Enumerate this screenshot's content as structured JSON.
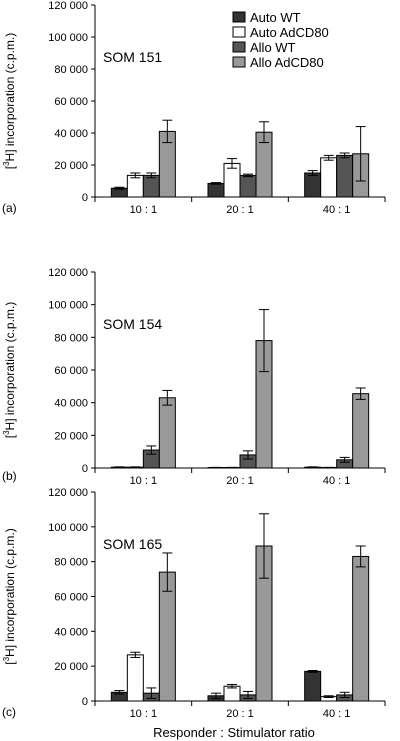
{
  "figure": {
    "shared_xlabel": "Responder : Stimulator ratio",
    "ylabel_prefix": "[",
    "ylabel_sup": "3",
    "ylabel_suffix": "H] incorporation (c.p.m.)"
  },
  "legend": {
    "entries": [
      {
        "name": "Auto WT",
        "color": "#333333"
      },
      {
        "name": "Auto AdCD80",
        "color": "#ffffff"
      },
      {
        "name": "Allo WT",
        "color": "#555555"
      },
      {
        "name": "Allo AdCD80",
        "color": "#999999"
      }
    ]
  },
  "chart_data": [
    {
      "type": "bar",
      "panel_label": "(a)",
      "title": "SOM 151",
      "categories": [
        "10 : 1",
        "20 : 1",
        "40 : 1"
      ],
      "ylim": [
        0,
        120000
      ],
      "yticks": [
        0,
        20000,
        40000,
        60000,
        80000,
        100000,
        120000
      ],
      "ytick_labels": [
        "0",
        "20 000",
        "40 000",
        "60 000",
        "80 000",
        "100 000",
        "120 000"
      ],
      "series": [
        {
          "name": "Auto WT",
          "color": "#333333",
          "values": [
            5500,
            8500,
            15000
          ],
          "errors": [
            600,
            500,
            1500
          ]
        },
        {
          "name": "Auto AdCD80",
          "color": "#ffffff",
          "values": [
            13500,
            21000,
            24500
          ],
          "errors": [
            1500,
            3000,
            1500
          ]
        },
        {
          "name": "Allo WT",
          "color": "#555555",
          "values": [
            13500,
            13500,
            26000
          ],
          "errors": [
            1500,
            800,
            1500
          ]
        },
        {
          "name": "Allo AdCD80",
          "color": "#999999",
          "values": [
            41000,
            40500,
            27000
          ],
          "errors": [
            7000,
            6500,
            17000
          ]
        }
      ]
    },
    {
      "type": "bar",
      "panel_label": "(b)",
      "title": "SOM 154",
      "categories": [
        "10 : 1",
        "20 : 1",
        "40 : 1"
      ],
      "ylim": [
        0,
        120000
      ],
      "yticks": [
        0,
        20000,
        40000,
        60000,
        80000,
        100000,
        120000
      ],
      "ytick_labels": [
        "0",
        "20 000",
        "40 000",
        "60 000",
        "80 000",
        "100 000",
        "120 000"
      ],
      "series": [
        {
          "name": "Auto WT",
          "color": "#333333",
          "values": [
            500,
            300,
            500
          ],
          "errors": [
            200,
            100,
            200
          ]
        },
        {
          "name": "Auto AdCD80",
          "color": "#ffffff",
          "values": [
            500,
            300,
            300
          ],
          "errors": [
            200,
            100,
            100
          ]
        },
        {
          "name": "Allo WT",
          "color": "#555555",
          "values": [
            11000,
            8000,
            5000
          ],
          "errors": [
            2500,
            2500,
            1500
          ]
        },
        {
          "name": "Allo AdCD80",
          "color": "#999999",
          "values": [
            43000,
            78000,
            45500
          ],
          "errors": [
            4500,
            19000,
            3500
          ]
        }
      ]
    },
    {
      "type": "bar",
      "panel_label": "(c)",
      "title": "SOM 165",
      "categories": [
        "10 : 1",
        "20 : 1",
        "40 : 1"
      ],
      "ylim": [
        0,
        120000
      ],
      "yticks": [
        0,
        20000,
        40000,
        60000,
        80000,
        100000,
        120000
      ],
      "ytick_labels": [
        "0",
        "20 000",
        "40 000",
        "60 000",
        "80 000",
        "100 000",
        "120 000"
      ],
      "series": [
        {
          "name": "Auto WT",
          "color": "#333333",
          "values": [
            5000,
            3000,
            17000
          ],
          "errors": [
            1000,
            1500,
            500
          ]
        },
        {
          "name": "Auto AdCD80",
          "color": "#ffffff",
          "values": [
            26500,
            8500,
            2500
          ],
          "errors": [
            1500,
            1000,
            500
          ]
        },
        {
          "name": "Allo WT",
          "color": "#555555",
          "values": [
            4500,
            3500,
            3500
          ],
          "errors": [
            3000,
            2000,
            1500
          ]
        },
        {
          "name": "Allo AdCD80",
          "color": "#999999",
          "values": [
            74000,
            89000,
            83000
          ],
          "errors": [
            11000,
            18500,
            6000
          ]
        }
      ]
    }
  ]
}
